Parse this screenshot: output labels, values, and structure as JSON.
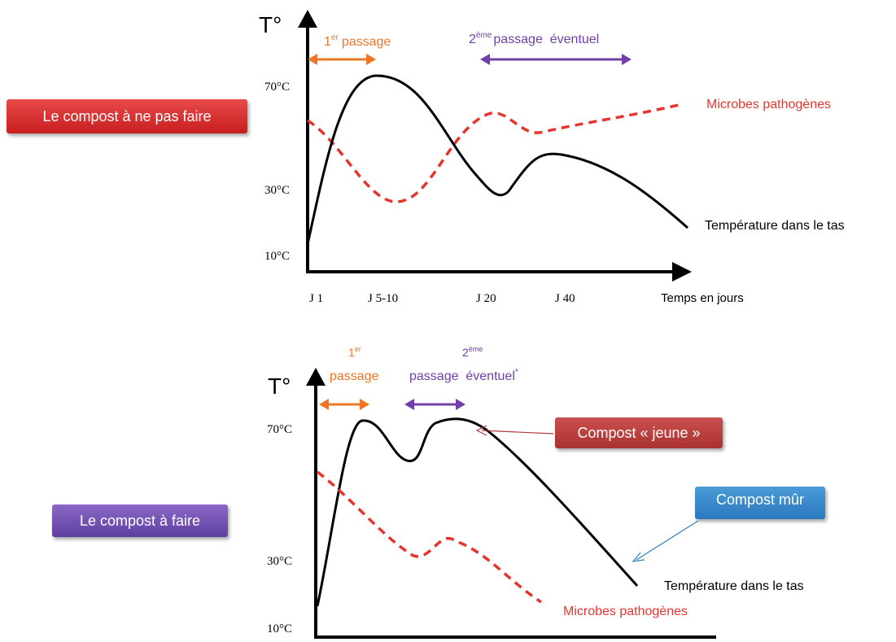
{
  "badges": {
    "not_to_do": "Le compost à ne pas faire",
    "to_do": "Le compost à faire",
    "young": "Compost « jeune »",
    "mature": "Compost mûr"
  },
  "top": {
    "ylabel": "T°",
    "yticks": [
      "70°C",
      "30°C",
      "10°C"
    ],
    "pass1_num": "1",
    "pass1_sup": "er",
    "pass1_word": "passage",
    "pass2_num": "2",
    "pass2_sup": "ème",
    "pass2_word": "passage  éventuel",
    "microbes_label": "Microbes pathogènes",
    "temp_label": "Température dans le tas",
    "xticks": [
      "J 1",
      "J 5-10",
      "J 20",
      "J 40"
    ],
    "xlabel": "Temps en jours"
  },
  "bottom": {
    "ylabel": "T°",
    "yticks": [
      "70°C",
      "30°C",
      "10°C"
    ],
    "pass1_num": "1",
    "pass1_sup": "er",
    "pass1_word": "passage",
    "pass2_num": "2",
    "pass2_sup": "ème",
    "pass2_word": "passage  éventuel",
    "pass2_mark": "*",
    "temp_label": "Température dans le tas",
    "microbes_label": "Microbes pathogènes"
  },
  "colors": {
    "orange": "#ee7727",
    "purple": "#7040a8",
    "red": "#e8342e",
    "blue": "#2e7fc4",
    "darkred": "#b23a3a"
  }
}
